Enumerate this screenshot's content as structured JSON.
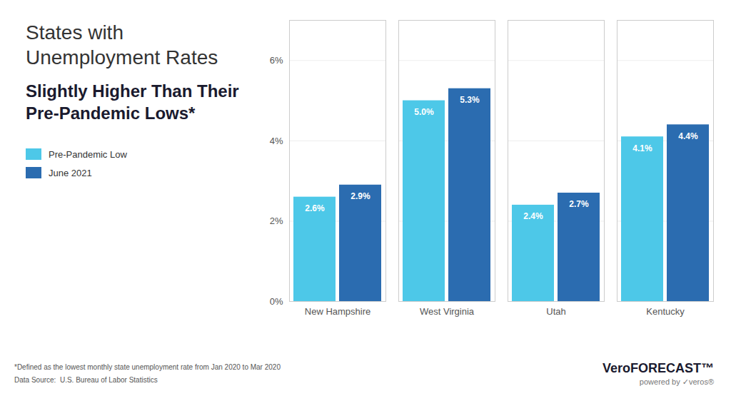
{
  "chart_data": {
    "type": "bar",
    "title": "States with Unemployment Rates",
    "subtitle": "Slightly Higher Than Their Pre-Pandemic Lows*",
    "categories": [
      "New Hampshire",
      "West Virginia",
      "Utah",
      "Kentucky"
    ],
    "series": [
      {
        "name": "Pre-Pandemic Low",
        "color": "#4DC8E8",
        "values": [
          2.6,
          5.0,
          2.4,
          4.1
        ],
        "value_labels": [
          "2.6%",
          "5.0%",
          "2.4%",
          "4.1%"
        ]
      },
      {
        "name": "June 2021",
        "color": "#2B6CB0",
        "values": [
          2.9,
          5.3,
          2.7,
          4.4
        ],
        "value_labels": [
          "2.9%",
          "5.3%",
          "2.7%",
          "4.4%"
        ]
      }
    ],
    "ylim": [
      0,
      7.0
    ],
    "yticks": [
      {
        "value": 0,
        "label": "0%"
      },
      {
        "value": 2,
        "label": "2%"
      },
      {
        "value": 4,
        "label": "4%"
      },
      {
        "value": 6,
        "label": "6%"
      }
    ],
    "grid": true,
    "legend": "left",
    "data_labels": true,
    "annotations": [
      "*Defined as the lowest monthly state unemployment rate from Jan 2020 to Mar 2020",
      "Data Source:  U.S. Bureau of Labor Statistics",
      "VeroFORECAST™",
      "powered by ✓veros®"
    ]
  }
}
